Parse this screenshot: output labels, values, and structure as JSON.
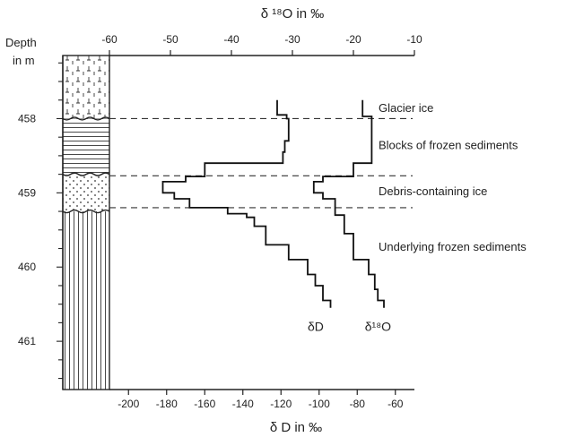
{
  "chart_data": {
    "type": "line",
    "top_axis": {
      "label": "δ ¹⁸O  in ‰",
      "ticks": [
        -60,
        -50,
        -40,
        -30,
        -20,
        -10
      ],
      "range": [
        -60,
        -10
      ]
    },
    "bottom_axis": {
      "label": "δ D  in ‰",
      "ticks": [
        -200,
        -180,
        -160,
        -140,
        -120,
        -100,
        -80,
        -60
      ],
      "range": [
        -210,
        -50
      ]
    },
    "depth_axis": {
      "label_line1": "Depth",
      "label_line2": "in m",
      "ticks": [
        458,
        459,
        460,
        461
      ],
      "range": [
        457.15,
        461.65
      ]
    },
    "layers": [
      {
        "name": "Glacier ice",
        "pattern": "ice",
        "top": 457.15,
        "bottom": 458.0
      },
      {
        "name": "Blocks of frozen sediments",
        "pattern": "horizontal-lines",
        "top": 458.0,
        "bottom": 458.75
      },
      {
        "name": "Debris-containing ice",
        "pattern": "dots",
        "top": 458.75,
        "bottom": 459.25
      },
      {
        "name": "Underlying frozen sediments",
        "pattern": "vertical-lines",
        "top": 459.25,
        "bottom": 461.65
      }
    ],
    "boundaries": [
      458.0,
      458.77,
      459.2
    ],
    "series": [
      {
        "name": "δD",
        "axis": "bottom",
        "points": [
          [
            -122,
            457.75
          ],
          [
            -122,
            457.95
          ],
          [
            -117,
            457.95
          ],
          [
            -117,
            458.0
          ],
          [
            -116,
            458.0
          ],
          [
            -116,
            458.3
          ],
          [
            -118,
            458.3
          ],
          [
            -118,
            458.45
          ],
          [
            -119,
            458.45
          ],
          [
            -119,
            458.6
          ],
          [
            -160,
            458.6
          ],
          [
            -160,
            458.78
          ],
          [
            -170,
            458.78
          ],
          [
            -170,
            458.85
          ],
          [
            -182,
            458.85
          ],
          [
            -182,
            459.0
          ],
          [
            -176,
            459.0
          ],
          [
            -176,
            459.08
          ],
          [
            -168,
            459.08
          ],
          [
            -168,
            459.2
          ],
          [
            -148,
            459.2
          ],
          [
            -148,
            459.28
          ],
          [
            -138,
            459.28
          ],
          [
            -138,
            459.33
          ],
          [
            -134,
            459.33
          ],
          [
            -134,
            459.45
          ],
          [
            -128,
            459.45
          ],
          [
            -128,
            459.7
          ],
          [
            -116,
            459.7
          ],
          [
            -116,
            459.9
          ],
          [
            -106,
            459.9
          ],
          [
            -106,
            460.1
          ],
          [
            -102,
            460.1
          ],
          [
            -102,
            460.25
          ],
          [
            -98,
            460.25
          ],
          [
            -98,
            460.45
          ],
          [
            -94,
            460.45
          ],
          [
            -94,
            460.55
          ]
        ]
      },
      {
        "name": "δ¹⁸O",
        "axis": "top",
        "points": [
          [
            -18.5,
            457.75
          ],
          [
            -18.5,
            457.97
          ],
          [
            -17.0,
            457.97
          ],
          [
            -17.0,
            458.6
          ],
          [
            -20.0,
            458.6
          ],
          [
            -20.0,
            458.78
          ],
          [
            -25.0,
            458.78
          ],
          [
            -25.0,
            458.85
          ],
          [
            -26.5,
            458.85
          ],
          [
            -26.5,
            459.0
          ],
          [
            -25.0,
            459.0
          ],
          [
            -25.0,
            459.08
          ],
          [
            -23.0,
            459.08
          ],
          [
            -23.0,
            459.3
          ],
          [
            -21.5,
            459.3
          ],
          [
            -21.5,
            459.55
          ],
          [
            -20.0,
            459.55
          ],
          [
            -20.0,
            459.9
          ],
          [
            -17.5,
            459.9
          ],
          [
            -17.5,
            460.1
          ],
          [
            -16.5,
            460.1
          ],
          [
            -16.5,
            460.3
          ],
          [
            -16.0,
            460.3
          ],
          [
            -16.0,
            460.45
          ],
          [
            -15.0,
            460.45
          ],
          [
            -15.0,
            460.55
          ]
        ]
      }
    ],
    "annotations": [
      {
        "text": "Glacier ice",
        "depth": 457.85
      },
      {
        "text": "Blocks of frozen sediments",
        "depth": 458.35
      },
      {
        "text": "Debris-containing ice",
        "depth": 458.97
      },
      {
        "text": "Underlying frozen sediments",
        "depth": 459.72
      }
    ],
    "series_labels": [
      {
        "text": "δD",
        "x_dD": -106,
        "depth": 460.8
      },
      {
        "text": "δ¹⁸O",
        "x_dD": -76,
        "depth": 460.8
      }
    ]
  }
}
